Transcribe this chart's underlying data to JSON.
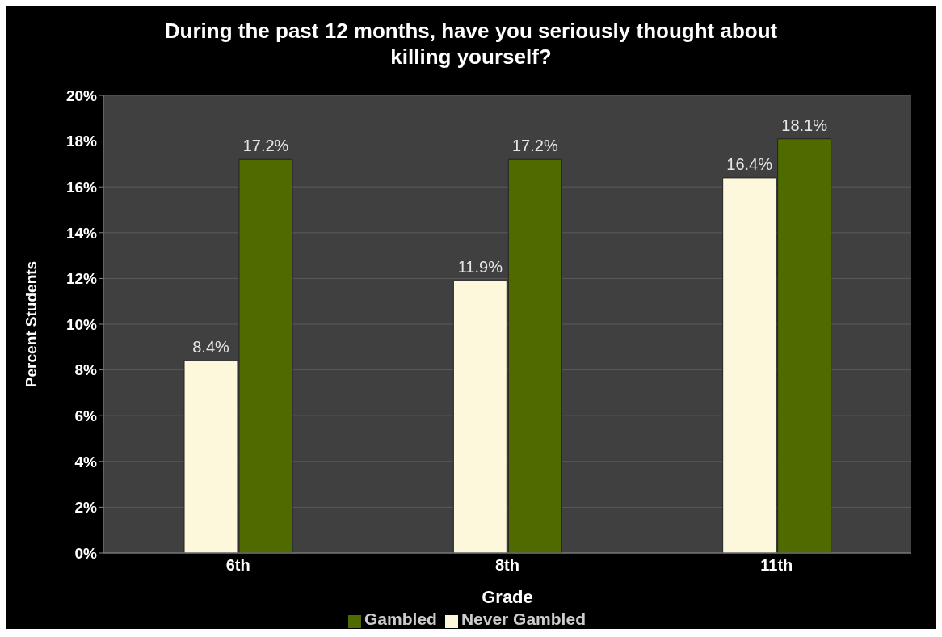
{
  "chart_data": {
    "type": "bar",
    "title": "During the past 12 months, have you seriously thought about killing yourself?",
    "xlabel": "Grade",
    "ylabel": "Percent Students",
    "categories": [
      "6th",
      "8th",
      "11th"
    ],
    "series": [
      {
        "name": "Never Gambled",
        "color": "#fdf8dc",
        "values": [
          8.4,
          11.9,
          16.4
        ],
        "value_labels": [
          "8.4%",
          "11.9%",
          "16.4%"
        ]
      },
      {
        "name": "Gambled",
        "color": "#4f6b00",
        "values": [
          17.2,
          17.2,
          18.1
        ],
        "value_labels": [
          "17.2%",
          "17.2%",
          "18.1%"
        ]
      }
    ],
    "ylim": [
      0,
      20
    ],
    "yticks": [
      {
        "value": 0,
        "label": "0%"
      },
      {
        "value": 2,
        "label": "2%"
      },
      {
        "value": 4,
        "label": "4%"
      },
      {
        "value": 6,
        "label": "6%"
      },
      {
        "value": 8,
        "label": "8%"
      },
      {
        "value": 10,
        "label": "10%"
      },
      {
        "value": 12,
        "label": "12%"
      },
      {
        "value": 14,
        "label": "14%"
      },
      {
        "value": 16,
        "label": "16%"
      },
      {
        "value": 18,
        "label": "18%"
      },
      {
        "value": 20,
        "label": "20%"
      }
    ],
    "grid": "y",
    "legend": "bottom"
  }
}
